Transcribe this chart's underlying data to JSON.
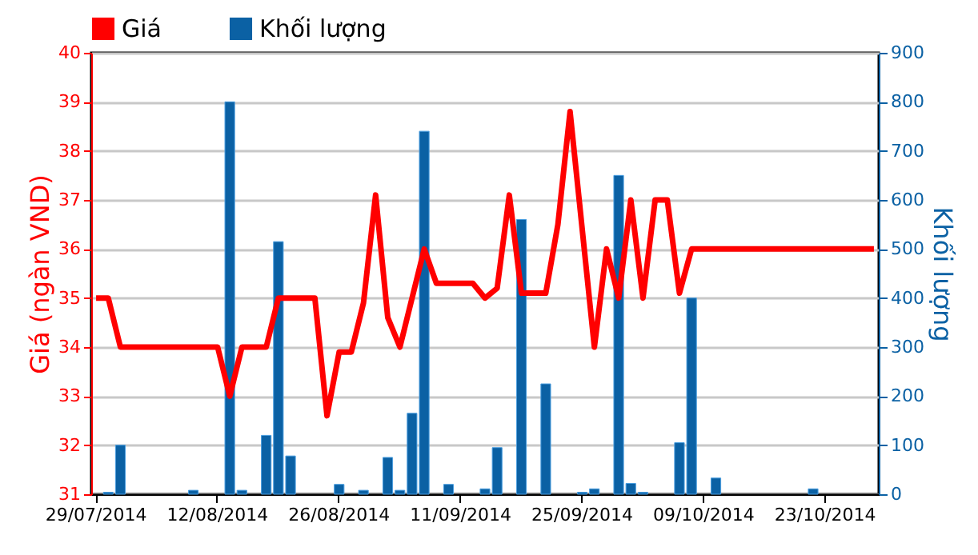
{
  "chart_data": {
    "type": "bar",
    "categories": [
      "29/07/2014",
      null,
      null,
      null,
      null,
      null,
      null,
      null,
      null,
      null,
      "12/08/2014",
      null,
      null,
      null,
      null,
      null,
      null,
      null,
      null,
      null,
      "26/08/2014",
      null,
      null,
      null,
      null,
      null,
      null,
      null,
      null,
      null,
      "11/09/2014",
      null,
      null,
      null,
      null,
      null,
      null,
      null,
      null,
      null,
      "25/09/2014",
      null,
      null,
      null,
      null,
      null,
      null,
      null,
      null,
      null,
      "09/10/2014",
      null,
      null,
      null,
      null,
      null,
      null,
      null,
      null,
      null,
      "23/10/2014",
      null,
      null,
      null,
      null
    ],
    "series": [
      {
        "name": "Giá",
        "type": "line",
        "color": "#ff0000",
        "values": [
          35,
          35,
          34,
          34,
          34,
          34,
          34,
          34,
          34,
          34,
          34,
          33,
          34,
          34,
          34,
          35,
          35,
          35,
          35,
          32.6,
          33.9,
          33.9,
          34.9,
          37.1,
          34.6,
          34,
          35,
          36,
          35.3,
          35.3,
          35.3,
          35.3,
          35,
          35.2,
          37.1,
          35.1,
          35.1,
          35.1,
          36.5,
          38.8,
          36.4,
          34,
          36,
          35,
          37,
          35,
          37,
          37,
          35.1,
          36,
          36,
          36,
          36,
          36,
          36,
          36,
          36,
          36,
          36,
          36,
          36,
          36,
          36,
          36,
          36
        ]
      },
      {
        "name": "Khối lượng",
        "type": "bar",
        "axis": "y2",
        "color": "#0b61a4",
        "values": [
          null,
          4,
          100,
          null,
          null,
          null,
          null,
          null,
          8,
          null,
          null,
          800,
          8,
          null,
          120,
          515,
          78,
          null,
          null,
          null,
          20,
          null,
          8,
          null,
          75,
          8,
          165,
          740,
          null,
          20,
          null,
          null,
          11,
          95,
          null,
          560,
          null,
          225,
          null,
          null,
          4,
          11,
          null,
          650,
          22,
          4,
          null,
          null,
          105,
          400,
          null,
          33,
          null,
          null,
          null,
          null,
          null,
          null,
          null,
          11,
          null,
          null,
          null,
          null,
          null
        ]
      }
    ],
    "ylabel": "Giá (ngàn VND)",
    "y2label": "Khối lượng",
    "ylim": [
      31,
      40
    ],
    "yticks": [
      31,
      32,
      33,
      34,
      35,
      36,
      37,
      38,
      39,
      40
    ],
    "y2lim": [
      0,
      900
    ],
    "y2ticks": [
      0,
      100,
      200,
      300,
      400,
      500,
      600,
      700,
      800,
      900
    ],
    "grid": "y",
    "legend": "top left"
  }
}
